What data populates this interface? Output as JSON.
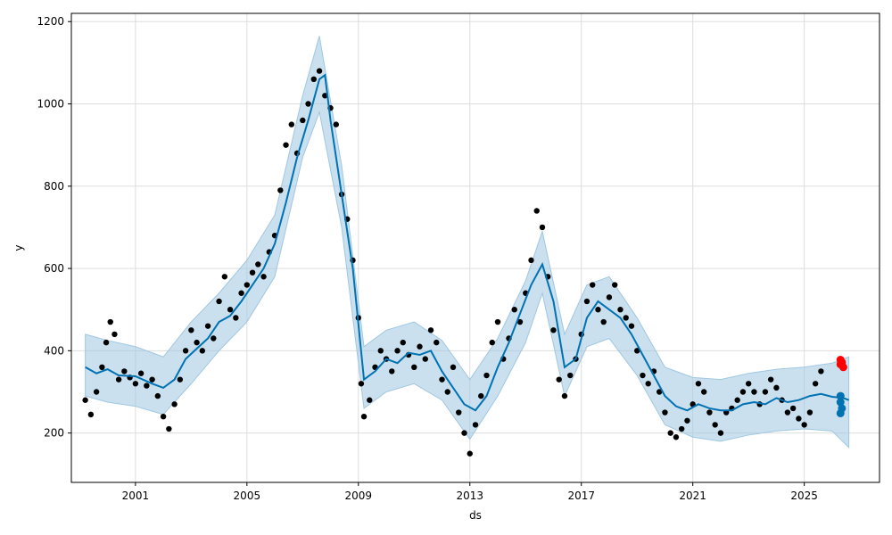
{
  "chart_data": {
    "type": "line",
    "title": "",
    "xlabel": "ds",
    "ylabel": "y",
    "xlim": [
      1998.7,
      2027.7
    ],
    "ylim": [
      80,
      1220
    ],
    "x_ticks": [
      2001,
      2005,
      2009,
      2013,
      2017,
      2021,
      2025
    ],
    "x_tick_labels": [
      "2001",
      "2005",
      "2009",
      "2013",
      "2017",
      "2021",
      "2025"
    ],
    "y_ticks": [
      200,
      400,
      600,
      800,
      1000,
      1200
    ],
    "y_tick_labels": [
      "200",
      "400",
      "600",
      "800",
      "1000",
      "1200"
    ],
    "grid": true,
    "colors": {
      "observed": "#000000",
      "forecast": "#0072B2",
      "uncertainty": "#9FC7E1",
      "highlight": "#ff0000"
    },
    "series": [
      {
        "kind": "observed",
        "points": [
          [
            1999.2,
            280
          ],
          [
            1999.4,
            245
          ],
          [
            1999.6,
            300
          ],
          [
            1999.8,
            360
          ],
          [
            1999.95,
            420
          ],
          [
            2000.1,
            470
          ],
          [
            2000.25,
            440
          ],
          [
            2000.4,
            330
          ],
          [
            2000.6,
            350
          ],
          [
            2000.8,
            335
          ],
          [
            2001.0,
            320
          ],
          [
            2001.2,
            345
          ],
          [
            2001.4,
            315
          ],
          [
            2001.6,
            330
          ],
          [
            2001.8,
            290
          ],
          [
            2002.0,
            240
          ],
          [
            2002.2,
            210
          ],
          [
            2002.4,
            270
          ],
          [
            2002.6,
            330
          ],
          [
            2002.8,
            400
          ],
          [
            2003.0,
            450
          ],
          [
            2003.2,
            420
          ],
          [
            2003.4,
            400
          ],
          [
            2003.6,
            460
          ],
          [
            2003.8,
            430
          ],
          [
            2004.0,
            520
          ],
          [
            2004.2,
            580
          ],
          [
            2004.4,
            500
          ],
          [
            2004.6,
            480
          ],
          [
            2004.8,
            540
          ],
          [
            2005.0,
            560
          ],
          [
            2005.2,
            590
          ],
          [
            2005.4,
            610
          ],
          [
            2005.6,
            580
          ],
          [
            2005.8,
            640
          ],
          [
            2006.0,
            680
          ],
          [
            2006.2,
            790
          ],
          [
            2006.4,
            900
          ],
          [
            2006.6,
            950
          ],
          [
            2006.8,
            880
          ],
          [
            2007.0,
            960
          ],
          [
            2007.2,
            1000
          ],
          [
            2007.4,
            1060
          ],
          [
            2007.6,
            1080
          ],
          [
            2007.8,
            1020
          ],
          [
            2008.0,
            990
          ],
          [
            2008.2,
            950
          ],
          [
            2008.4,
            780
          ],
          [
            2008.6,
            720
          ],
          [
            2008.8,
            620
          ],
          [
            2009.0,
            480
          ],
          [
            2009.1,
            320
          ],
          [
            2009.2,
            240
          ],
          [
            2009.4,
            280
          ],
          [
            2009.6,
            360
          ],
          [
            2009.8,
            400
          ],
          [
            2010.0,
            380
          ],
          [
            2010.2,
            350
          ],
          [
            2010.4,
            400
          ],
          [
            2010.6,
            420
          ],
          [
            2010.8,
            390
          ],
          [
            2011.0,
            360
          ],
          [
            2011.2,
            410
          ],
          [
            2011.4,
            380
          ],
          [
            2011.6,
            450
          ],
          [
            2011.8,
            420
          ],
          [
            2012.0,
            330
          ],
          [
            2012.2,
            300
          ],
          [
            2012.4,
            360
          ],
          [
            2012.6,
            250
          ],
          [
            2012.8,
            200
          ],
          [
            2013.0,
            150
          ],
          [
            2013.2,
            220
          ],
          [
            2013.4,
            290
          ],
          [
            2013.6,
            340
          ],
          [
            2013.8,
            420
          ],
          [
            2014.0,
            470
          ],
          [
            2014.2,
            380
          ],
          [
            2014.4,
            430
          ],
          [
            2014.6,
            500
          ],
          [
            2014.8,
            470
          ],
          [
            2015.0,
            540
          ],
          [
            2015.2,
            620
          ],
          [
            2015.4,
            740
          ],
          [
            2015.6,
            700
          ],
          [
            2015.8,
            580
          ],
          [
            2016.0,
            450
          ],
          [
            2016.2,
            330
          ],
          [
            2016.4,
            290
          ],
          [
            2016.6,
            340
          ],
          [
            2016.8,
            380
          ],
          [
            2017.0,
            440
          ],
          [
            2017.2,
            520
          ],
          [
            2017.4,
            560
          ],
          [
            2017.6,
            500
          ],
          [
            2017.8,
            470
          ],
          [
            2018.0,
            530
          ],
          [
            2018.2,
            560
          ],
          [
            2018.4,
            500
          ],
          [
            2018.6,
            480
          ],
          [
            2018.8,
            460
          ],
          [
            2019.0,
            400
          ],
          [
            2019.2,
            340
          ],
          [
            2019.4,
            320
          ],
          [
            2019.6,
            350
          ],
          [
            2019.8,
            300
          ],
          [
            2020.0,
            250
          ],
          [
            2020.2,
            200
          ],
          [
            2020.4,
            190
          ],
          [
            2020.6,
            210
          ],
          [
            2020.8,
            230
          ],
          [
            2021.0,
            270
          ],
          [
            2021.2,
            320
          ],
          [
            2021.4,
            300
          ],
          [
            2021.6,
            250
          ],
          [
            2021.8,
            220
          ],
          [
            2022.0,
            200
          ],
          [
            2022.2,
            250
          ],
          [
            2022.4,
            260
          ],
          [
            2022.6,
            280
          ],
          [
            2022.8,
            300
          ],
          [
            2023.0,
            320
          ],
          [
            2023.2,
            300
          ],
          [
            2023.4,
            270
          ],
          [
            2023.6,
            300
          ],
          [
            2023.8,
            330
          ],
          [
            2024.0,
            310
          ],
          [
            2024.2,
            280
          ],
          [
            2024.4,
            250
          ],
          [
            2024.6,
            260
          ],
          [
            2024.8,
            235
          ],
          [
            2025.0,
            220
          ],
          [
            2025.2,
            250
          ],
          [
            2025.4,
            320
          ],
          [
            2025.6,
            350
          ]
        ]
      },
      {
        "kind": "forecast",
        "points": [
          [
            1999.2,
            360
          ],
          [
            1999.6,
            345
          ],
          [
            2000.0,
            355
          ],
          [
            2000.4,
            340
          ],
          [
            2001.0,
            338
          ],
          [
            2001.6,
            320
          ],
          [
            2002.0,
            310
          ],
          [
            2002.4,
            330
          ],
          [
            2002.8,
            380
          ],
          [
            2003.2,
            405
          ],
          [
            2003.6,
            430
          ],
          [
            2004.0,
            470
          ],
          [
            2004.4,
            485
          ],
          [
            2004.8,
            520
          ],
          [
            2005.2,
            560
          ],
          [
            2005.6,
            600
          ],
          [
            2006.0,
            660
          ],
          [
            2006.4,
            760
          ],
          [
            2006.8,
            870
          ],
          [
            2007.2,
            960
          ],
          [
            2007.6,
            1060
          ],
          [
            2007.8,
            1070
          ],
          [
            2008.0,
            960
          ],
          [
            2008.4,
            780
          ],
          [
            2008.8,
            600
          ],
          [
            2009.2,
            330
          ],
          [
            2009.6,
            350
          ],
          [
            2010.0,
            380
          ],
          [
            2010.4,
            370
          ],
          [
            2010.8,
            395
          ],
          [
            2011.2,
            390
          ],
          [
            2011.6,
            400
          ],
          [
            2012.0,
            350
          ],
          [
            2012.4,
            310
          ],
          [
            2012.8,
            270
          ],
          [
            2013.2,
            255
          ],
          [
            2013.6,
            290
          ],
          [
            2014.0,
            360
          ],
          [
            2014.4,
            420
          ],
          [
            2014.8,
            490
          ],
          [
            2015.2,
            560
          ],
          [
            2015.6,
            610
          ],
          [
            2016.0,
            520
          ],
          [
            2016.4,
            360
          ],
          [
            2016.8,
            380
          ],
          [
            2017.2,
            480
          ],
          [
            2017.6,
            520
          ],
          [
            2018.0,
            500
          ],
          [
            2018.4,
            480
          ],
          [
            2018.8,
            440
          ],
          [
            2019.2,
            390
          ],
          [
            2019.6,
            340
          ],
          [
            2020.0,
            290
          ],
          [
            2020.4,
            265
          ],
          [
            2020.8,
            255
          ],
          [
            2021.2,
            270
          ],
          [
            2021.6,
            260
          ],
          [
            2022.0,
            255
          ],
          [
            2022.4,
            255
          ],
          [
            2022.8,
            270
          ],
          [
            2023.2,
            275
          ],
          [
            2023.6,
            270
          ],
          [
            2024.0,
            285
          ],
          [
            2024.4,
            275
          ],
          [
            2024.8,
            280
          ],
          [
            2025.2,
            290
          ],
          [
            2025.6,
            295
          ],
          [
            2026.0,
            288
          ],
          [
            2026.4,
            285
          ],
          [
            2026.6,
            280
          ]
        ]
      },
      {
        "kind": "uncertainty",
        "lower": [
          [
            1999.2,
            290
          ],
          [
            2000.0,
            275
          ],
          [
            2001.0,
            265
          ],
          [
            2002.0,
            245
          ],
          [
            2003.0,
            320
          ],
          [
            2004.0,
            400
          ],
          [
            2005.0,
            470
          ],
          [
            2006.0,
            580
          ],
          [
            2007.0,
            870
          ],
          [
            2007.6,
            980
          ],
          [
            2008.4,
            700
          ],
          [
            2009.2,
            260
          ],
          [
            2010.0,
            300
          ],
          [
            2011.0,
            320
          ],
          [
            2012.0,
            280
          ],
          [
            2013.0,
            185
          ],
          [
            2014.0,
            290
          ],
          [
            2015.0,
            420
          ],
          [
            2015.6,
            540
          ],
          [
            2016.4,
            290
          ],
          [
            2017.2,
            410
          ],
          [
            2018.0,
            430
          ],
          [
            2019.0,
            340
          ],
          [
            2020.0,
            220
          ],
          [
            2021.0,
            190
          ],
          [
            2022.0,
            180
          ],
          [
            2023.0,
            195
          ],
          [
            2024.0,
            205
          ],
          [
            2025.0,
            210
          ],
          [
            2026.0,
            205
          ],
          [
            2026.6,
            165
          ]
        ],
        "upper": [
          [
            1999.2,
            440
          ],
          [
            2000.0,
            425
          ],
          [
            2001.0,
            410
          ],
          [
            2002.0,
            385
          ],
          [
            2003.0,
            470
          ],
          [
            2004.0,
            540
          ],
          [
            2005.0,
            620
          ],
          [
            2006.0,
            730
          ],
          [
            2007.0,
            1020
          ],
          [
            2007.6,
            1165
          ],
          [
            2008.4,
            850
          ],
          [
            2009.2,
            410
          ],
          [
            2010.0,
            450
          ],
          [
            2011.0,
            470
          ],
          [
            2012.0,
            425
          ],
          [
            2013.0,
            330
          ],
          [
            2014.0,
            430
          ],
          [
            2015.0,
            570
          ],
          [
            2015.6,
            690
          ],
          [
            2016.4,
            440
          ],
          [
            2017.2,
            560
          ],
          [
            2018.0,
            580
          ],
          [
            2019.0,
            480
          ],
          [
            2020.0,
            360
          ],
          [
            2021.0,
            335
          ],
          [
            2022.0,
            330
          ],
          [
            2023.0,
            345
          ],
          [
            2024.0,
            355
          ],
          [
            2025.0,
            360
          ],
          [
            2026.0,
            370
          ],
          [
            2026.6,
            385
          ]
        ]
      },
      {
        "kind": "highlight",
        "points": [
          [
            2026.3,
            367
          ],
          [
            2026.35,
            372
          ],
          [
            2026.3,
            378
          ],
          [
            2026.4,
            360
          ]
        ]
      },
      {
        "kind": "forecast-end",
        "points": [
          [
            2026.3,
            290
          ],
          [
            2026.3,
            275
          ],
          [
            2026.35,
            260
          ],
          [
            2026.3,
            248
          ]
        ]
      }
    ]
  }
}
